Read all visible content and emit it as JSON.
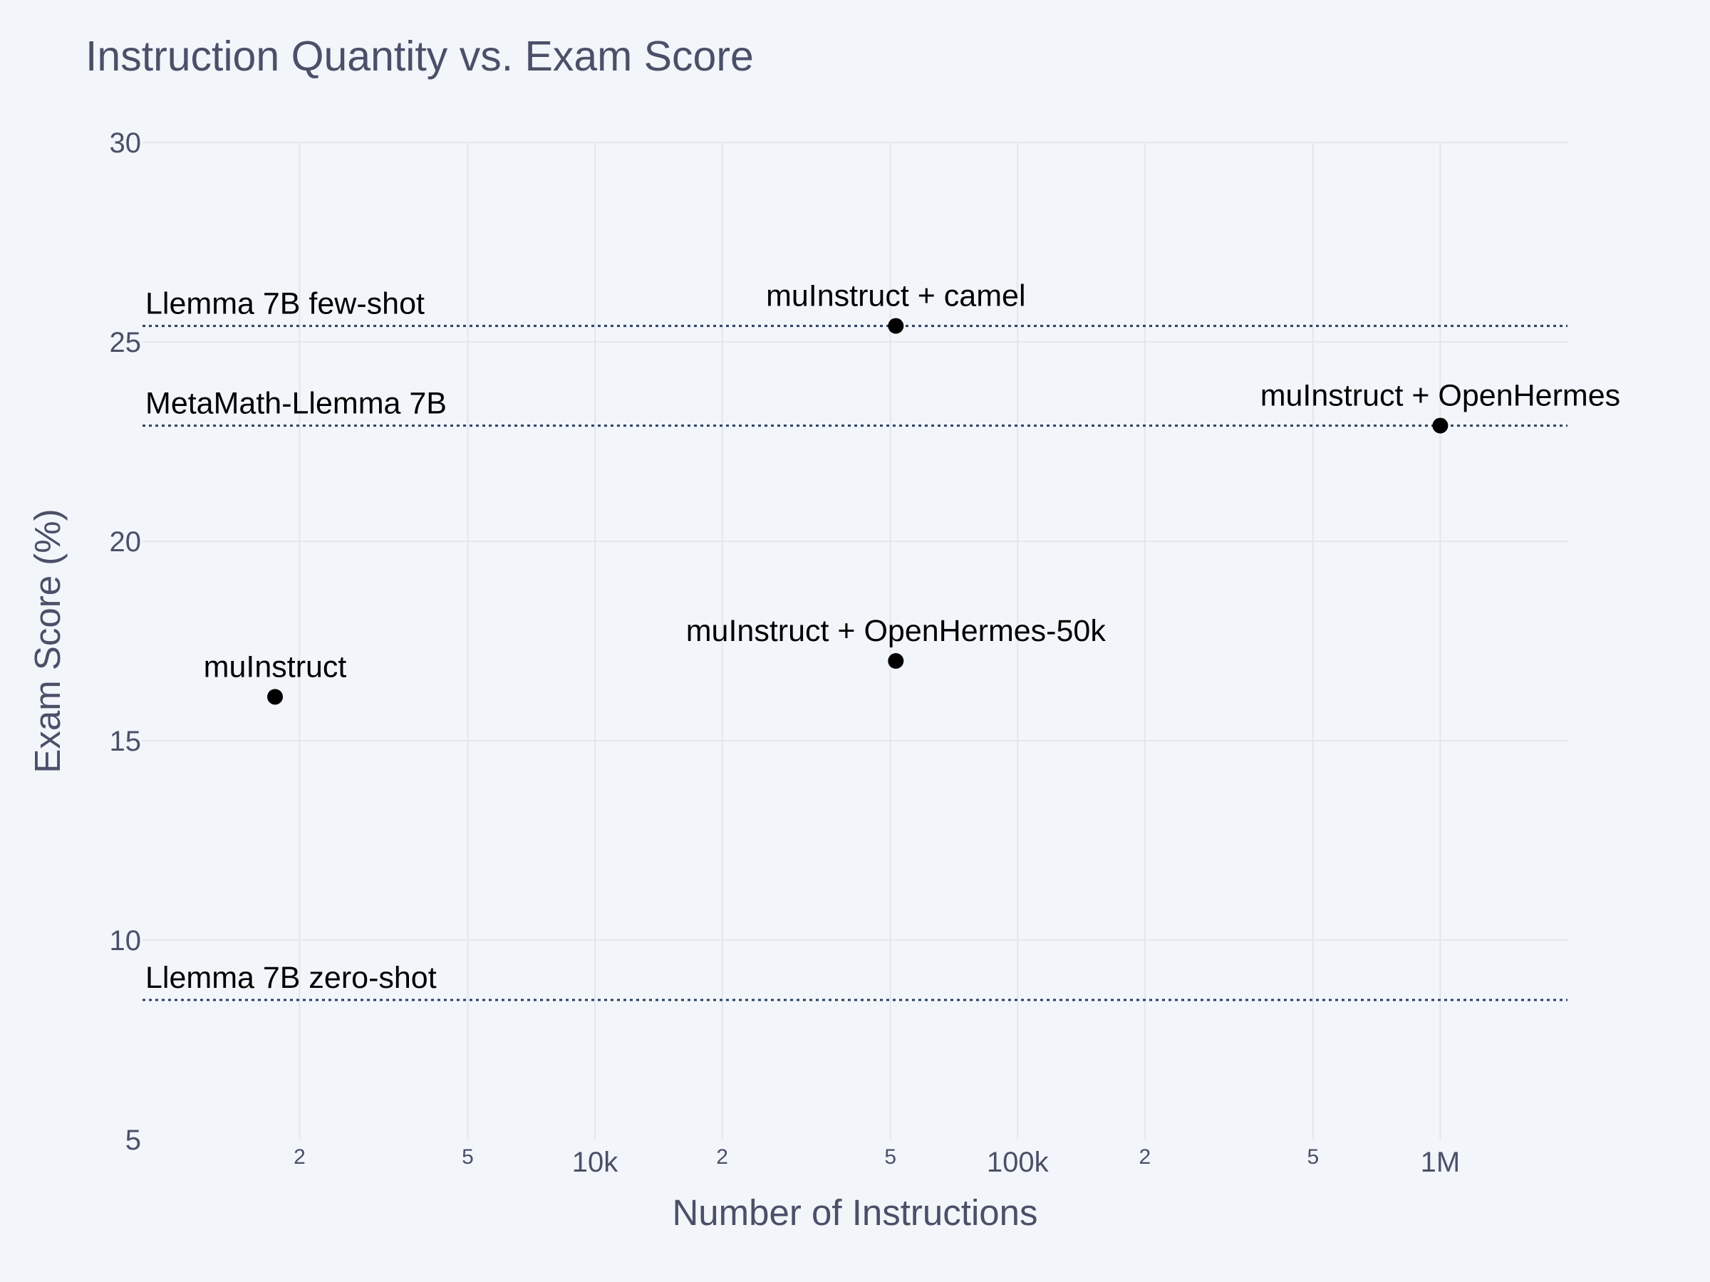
{
  "chart_data": {
    "type": "scatter",
    "title": "Instruction Quantity vs. Exam Score",
    "xlabel": "Number of Instructions",
    "ylabel": "Exam Score (%)",
    "xscale": "log",
    "xlim": [
      850,
      2000000
    ],
    "ylim": [
      5,
      30
    ],
    "y_ticks": [
      "5",
      "10",
      "15",
      "20",
      "25",
      "30"
    ],
    "x_ticks_major": [
      {
        "value": 10000,
        "label": "10k"
      },
      {
        "value": 100000,
        "label": "100k"
      },
      {
        "value": 1000000,
        "label": "1M"
      }
    ],
    "x_ticks_minor": [
      {
        "value": 2000,
        "label": "2"
      },
      {
        "value": 5000,
        "label": "5"
      },
      {
        "value": 20000,
        "label": "2"
      },
      {
        "value": 50000,
        "label": "5"
      },
      {
        "value": 200000,
        "label": "2"
      },
      {
        "value": 500000,
        "label": "5"
      }
    ],
    "grid": true,
    "points": [
      {
        "label": "muInstruct",
        "x": 1750,
        "y": 16.1
      },
      {
        "label": "muInstruct + OpenHermes-50k",
        "x": 51500,
        "y": 17.0
      },
      {
        "label": "muInstruct + camel",
        "x": 51500,
        "y": 25.4
      },
      {
        "label": "muInstruct + OpenHermes",
        "x": 1000000,
        "y": 22.9
      }
    ],
    "reference_lines": [
      {
        "label": "Llemma 7B few-shot",
        "y": 25.4
      },
      {
        "label": "MetaMath-Llemma 7B",
        "y": 22.9
      },
      {
        "label": "Llemma 7B zero-shot",
        "y": 8.5
      }
    ],
    "colors": {
      "background": "#f2f5fa",
      "grid": "#e3e6ec",
      "text": "#4b5068",
      "points": "#000000",
      "reference_lines": "#2a3f5f"
    }
  }
}
